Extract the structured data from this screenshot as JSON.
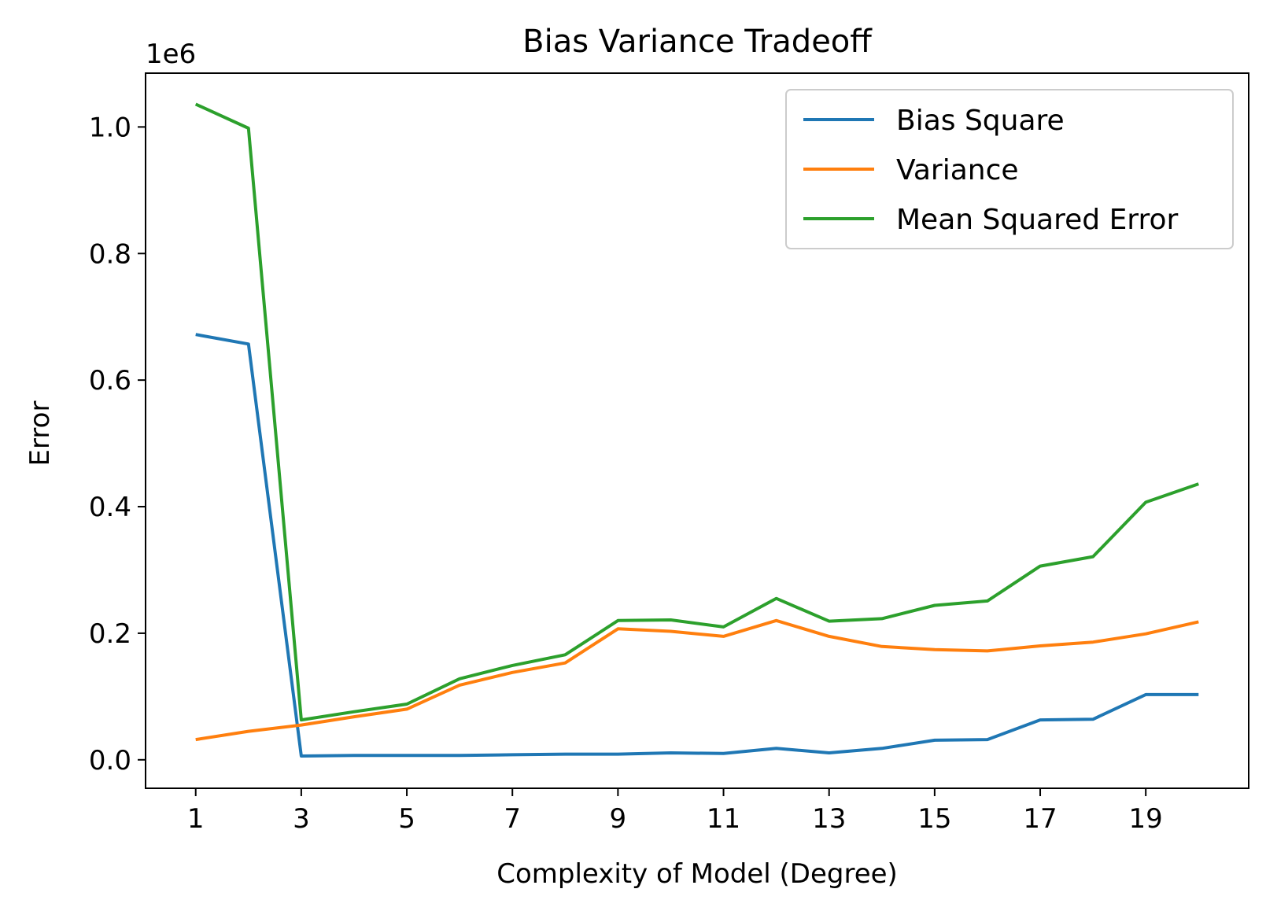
{
  "chart_data": {
    "type": "line",
    "title": "Bias Variance Tradeoff",
    "xlabel": "Complexity of Model (Degree)",
    "ylabel": "Error",
    "y_offset_label": "1e6",
    "x": [
      1,
      2,
      3,
      4,
      5,
      6,
      7,
      8,
      9,
      10,
      11,
      12,
      13,
      14,
      15,
      16,
      17,
      18,
      19,
      20
    ],
    "xlim": [
      0.05,
      20.95
    ],
    "ylim": [
      -0.045,
      1.085
    ],
    "x_ticks": [
      1,
      3,
      5,
      7,
      9,
      11,
      13,
      15,
      17,
      19
    ],
    "x_tick_labels": [
      "1",
      "3",
      "5",
      "7",
      "9",
      "11",
      "13",
      "15",
      "17",
      "19"
    ],
    "y_ticks": [
      0.0,
      0.2,
      0.4,
      0.6,
      0.8,
      1.0
    ],
    "y_tick_labels": [
      "0.0",
      "0.2",
      "0.4",
      "0.6",
      "0.8",
      "1.0"
    ],
    "grid": false,
    "legend_position": "top-right",
    "series": [
      {
        "name": "Bias Square",
        "color": "#1f77b4",
        "values": [
          0.672,
          0.657,
          0.006,
          0.007,
          0.007,
          0.007,
          0.008,
          0.009,
          0.009,
          0.011,
          0.01,
          0.018,
          0.011,
          0.018,
          0.031,
          0.032,
          0.063,
          0.064,
          0.103,
          0.103
        ]
      },
      {
        "name": "Variance",
        "color": "#ff7f0e",
        "values": [
          0.032,
          0.045,
          0.055,
          0.068,
          0.08,
          0.118,
          0.138,
          0.153,
          0.207,
          0.203,
          0.195,
          0.22,
          0.195,
          0.179,
          0.174,
          0.172,
          0.18,
          0.186,
          0.199,
          0.218
        ]
      },
      {
        "name": "Mean Squared Error",
        "color": "#2ca02c",
        "values": [
          1.036,
          0.998,
          0.063,
          0.076,
          0.088,
          0.128,
          0.149,
          0.166,
          0.22,
          0.221,
          0.21,
          0.255,
          0.219,
          0.223,
          0.244,
          0.251,
          0.306,
          0.321,
          0.407,
          0.436
        ]
      }
    ]
  }
}
